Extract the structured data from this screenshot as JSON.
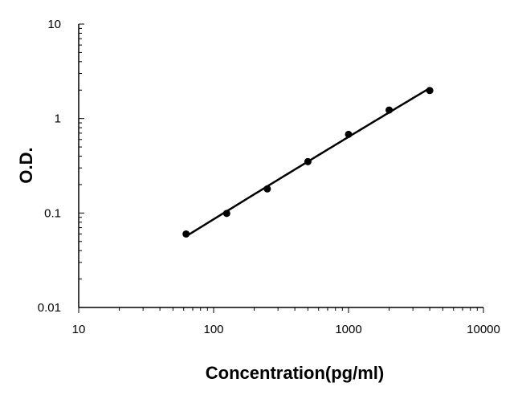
{
  "chart_data": {
    "type": "scatter",
    "title": "",
    "xlabel": "Concentration(pg/ml)",
    "ylabel": "O.D.",
    "xscale": "log",
    "yscale": "log",
    "xlim": [
      10,
      10000
    ],
    "ylim": [
      0.01,
      10
    ],
    "x_tick_labels": [
      "10",
      "100",
      "1000",
      "10000"
    ],
    "y_tick_labels": [
      "10",
      "1",
      "0.1",
      "0.01"
    ],
    "grid": false,
    "legend": "none",
    "fit_line": true,
    "series": [
      {
        "x": [
          62.5,
          125,
          250,
          500,
          1000,
          2000,
          4000
        ],
        "y": [
          0.06,
          0.099,
          0.18,
          0.35,
          0.68,
          1.23,
          1.98
        ]
      }
    ],
    "colors": {
      "marker": "#000000",
      "line": "#000000",
      "axis": "#000000"
    }
  }
}
